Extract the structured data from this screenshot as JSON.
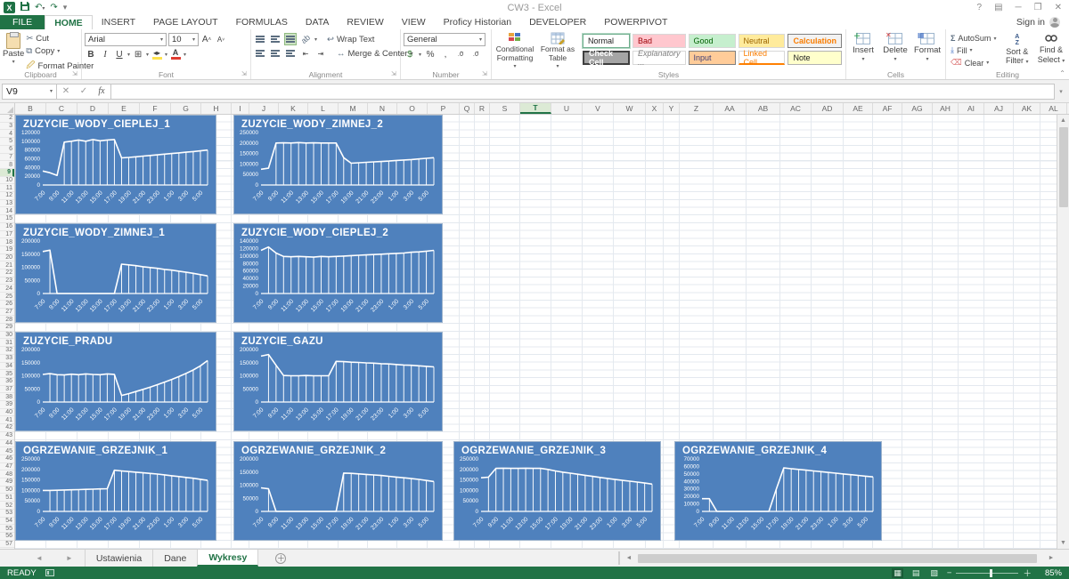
{
  "colors": {
    "chart_bg": "#4f81bd",
    "accent_green": "#217346",
    "chart_line": "#ffffff"
  },
  "title_bar": {
    "title": "CW3 - Excel",
    "help": "?",
    "sign_in": "Sign in"
  },
  "ribbon": {
    "tabs": [
      "FILE",
      "HOME",
      "INSERT",
      "PAGE LAYOUT",
      "FORMULAS",
      "DATA",
      "REVIEW",
      "VIEW",
      "Proficy Historian",
      "DEVELOPER",
      "POWERPIVOT"
    ],
    "active_tab": "HOME",
    "clipboard": {
      "label": "Clipboard",
      "paste": "Paste",
      "cut": "Cut",
      "copy": "Copy",
      "format_painter": "Format Painter"
    },
    "font": {
      "label": "Font",
      "family": "Arial",
      "size": "10"
    },
    "alignment": {
      "label": "Alignment",
      "wrap_text": "Wrap Text",
      "merge_center": "Merge & Center"
    },
    "number": {
      "label": "Number",
      "format": "General"
    },
    "styles": {
      "label": "Styles",
      "conditional": "Conditional Formatting",
      "format_table": "Format as Table",
      "cells": [
        "Normal",
        "Bad",
        "Good",
        "Neutral",
        "Calculation",
        "Check Cell",
        "Explanatory ...",
        "Input",
        "Linked Cell",
        "Note"
      ]
    },
    "cells": {
      "label": "Cells",
      "insert": "Insert",
      "delete": "Delete",
      "format": "Format"
    },
    "editing": {
      "label": "Editing",
      "autosum": "AutoSum",
      "fill": "Fill",
      "clear": "Clear",
      "sort": "Sort & Filter",
      "find": "Find & Select"
    }
  },
  "formula_bar": {
    "name_box": "V9",
    "formula": ""
  },
  "grid": {
    "columns": [
      "B",
      "C",
      "D",
      "E",
      "F",
      "G",
      "H",
      "I",
      "J",
      "K",
      "L",
      "M",
      "N",
      "O",
      "P",
      "Q",
      "R",
      "S",
      "T",
      "U",
      "V",
      "W",
      "X",
      "Y",
      "Z",
      "AA",
      "AB",
      "AC",
      "AD",
      "AE",
      "AF",
      "AG",
      "AH",
      "AI",
      "AJ",
      "AK",
      "AL"
    ],
    "row_start": 2,
    "row_end": 57,
    "selected_column": "T",
    "selected_row": 9
  },
  "chart_data": {
    "type": "line",
    "x_tick_labels": [
      "7:00",
      "9:00",
      "11:00",
      "13:00",
      "15:00",
      "17:00",
      "19:00",
      "21:00",
      "23:00",
      "1:00",
      "3:00",
      "5:00"
    ],
    "note": "white line with vertical drop-lines to zero on blue background, hourly samples 7:00 through 6:00",
    "items": [
      {
        "title": "ZUZYCIE_WODY_CIEPLEJ_1",
        "ymax": 120000,
        "ystep": 20000,
        "values": [
          32000,
          28000,
          22000,
          98000,
          100000,
          103000,
          100000,
          104000,
          101000,
          103000,
          104000,
          62000,
          63000,
          64500,
          66000,
          67500,
          69000,
          70500,
          72000,
          73500,
          75000,
          76500,
          78000,
          80000
        ]
      },
      {
        "title": "ZUZYCIE_WODY_ZIMNEJ_2",
        "ymax": 250000,
        "ystep": 50000,
        "values": [
          75000,
          80000,
          200000,
          201000,
          200000,
          202000,
          200000,
          201000,
          200000,
          200000,
          200000,
          130000,
          104000,
          106000,
          108000,
          110000,
          112000,
          114000,
          117000,
          119000,
          121000,
          124000,
          127000,
          130000
        ]
      },
      {
        "title": "ZUZYCIE_WODY_ZIMNEJ_1",
        "ymax": 200000,
        "ystep": 50000,
        "values": [
          160000,
          165000,
          0,
          0,
          0,
          0,
          0,
          0,
          0,
          0,
          0,
          112000,
          109000,
          106000,
          102000,
          99000,
          96000,
          92000,
          89000,
          85000,
          81000,
          77000,
          72000,
          67000
        ]
      },
      {
        "title": "ZUZYCIE_WODY_CIEPLEJ_2",
        "ymax": 140000,
        "ystep": 20000,
        "values": [
          115000,
          124000,
          108000,
          99000,
          98000,
          99000,
          98000,
          97000,
          99000,
          98000,
          99000,
          100000,
          101000,
          102000,
          103000,
          104000,
          105000,
          106000,
          107000,
          108000,
          110000,
          111000,
          113000,
          115000
        ]
      },
      {
        "title": "ZUZYCIE_PRADU",
        "ymax": 200000,
        "ystep": 50000,
        "values": [
          105000,
          108000,
          104000,
          103000,
          106000,
          104000,
          107000,
          105000,
          104000,
          107000,
          105000,
          25000,
          32000,
          40000,
          48000,
          57000,
          66000,
          76000,
          86000,
          97000,
          109000,
          122000,
          138000,
          158000
        ]
      },
      {
        "title": "ZUZYCIE_GAZU",
        "ymax": 200000,
        "ystep": 50000,
        "values": [
          175000,
          181000,
          140000,
          101000,
          100000,
          100000,
          101000,
          100000,
          100000,
          100000,
          155000,
          154000,
          152000,
          151000,
          149000,
          148000,
          146000,
          145000,
          143000,
          141000,
          140000,
          138000,
          136000,
          134000
        ]
      },
      {
        "title": "OGRZEWANIE_GRZEJNIK_1",
        "ymax": 250000,
        "ystep": 50000,
        "values": [
          100000,
          100000,
          101000,
          102000,
          103000,
          104000,
          105000,
          106000,
          107000,
          108000,
          196000,
          193000,
          190000,
          187000,
          184000,
          181000,
          178000,
          174000,
          170000,
          166000,
          162000,
          158000,
          153000,
          148000
        ]
      },
      {
        "title": "OGRZEWANIE_GRZEJNIK_2",
        "ymax": 200000,
        "ystep": 50000,
        "values": [
          90000,
          86000,
          0,
          0,
          0,
          0,
          0,
          0,
          0,
          0,
          0,
          146000,
          145000,
          143000,
          141000,
          139000,
          137000,
          134000,
          131000,
          128000,
          125000,
          122000,
          118000,
          114000
        ]
      },
      {
        "title": "OGRZEWANIE_GRZEJNIK_3",
        "ymax": 250000,
        "ystep": 50000,
        "values": [
          160000,
          163000,
          205000,
          206000,
          205000,
          205000,
          206000,
          205000,
          205000,
          200000,
          193000,
          187000,
          182000,
          177000,
          172000,
          167000,
          162000,
          157000,
          152000,
          148000,
          144000,
          140000,
          135000,
          130000
        ]
      },
      {
        "title": "OGRZEWANIE_GRZEJNIK_4",
        "ymax": 70000,
        "ystep": 10000,
        "values": [
          17000,
          17000,
          0,
          0,
          0,
          0,
          0,
          0,
          0,
          0,
          30000,
          58000,
          57000,
          56000,
          55000,
          54000,
          53000,
          52000,
          51000,
          50000,
          49000,
          48000,
          47000,
          46000
        ]
      }
    ]
  },
  "sheet_tabs": {
    "tabs": [
      "Ustawienia",
      "Dane",
      "Wykresy"
    ],
    "active": "Wykresy"
  },
  "status_bar": {
    "mode": "READY",
    "zoom": "85%"
  }
}
